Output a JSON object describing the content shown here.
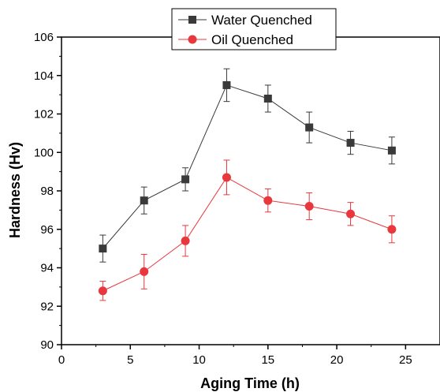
{
  "chart_data": {
    "type": "line",
    "title": "",
    "xlabel": "Aging Time (h)",
    "ylabel": "Hardness (Hv)",
    "xlim": [
      0,
      27.5
    ],
    "ylim": [
      90,
      106
    ],
    "x_ticks": [
      0,
      5,
      10,
      15,
      20,
      25
    ],
    "y_ticks": [
      90,
      92,
      94,
      96,
      98,
      100,
      102,
      104,
      106
    ],
    "grid": false,
    "legend_position": "top-center",
    "series": [
      {
        "name": "Water Quenched",
        "marker": "square",
        "color": "#3a3a3a",
        "x": [
          3,
          6,
          9,
          12,
          15,
          18,
          21,
          24
        ],
        "y": [
          95.0,
          97.5,
          98.6,
          103.5,
          102.8,
          101.3,
          100.5,
          100.1
        ],
        "error": [
          0.7,
          0.7,
          0.6,
          0.85,
          0.7,
          0.8,
          0.6,
          0.7
        ]
      },
      {
        "name": "Oil Quenched",
        "marker": "circle",
        "color": "#e8383d",
        "x": [
          3,
          6,
          9,
          12,
          15,
          18,
          21,
          24
        ],
        "y": [
          92.8,
          93.8,
          95.4,
          98.7,
          97.5,
          97.2,
          96.8,
          96.0
        ],
        "error": [
          0.5,
          0.9,
          0.8,
          0.9,
          0.6,
          0.7,
          0.6,
          0.7
        ]
      }
    ]
  }
}
